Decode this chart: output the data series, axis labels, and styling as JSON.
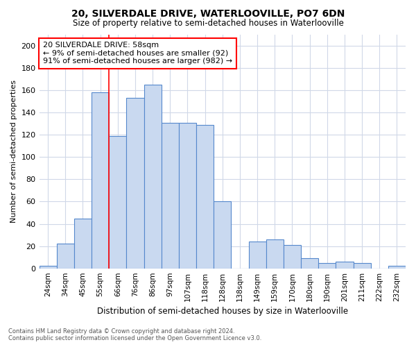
{
  "title1": "20, SILVERDALE DRIVE, WATERLOOVILLE, PO7 6DN",
  "title2": "Size of property relative to semi-detached houses in Waterlooville",
  "xlabel": "Distribution of semi-detached houses by size in Waterlooville",
  "ylabel": "Number of semi-detached properties",
  "categories": [
    "24sqm",
    "34sqm",
    "45sqm",
    "55sqm",
    "66sqm",
    "76sqm",
    "86sqm",
    "97sqm",
    "107sqm",
    "118sqm",
    "128sqm",
    "138sqm",
    "149sqm",
    "159sqm",
    "170sqm",
    "180sqm",
    "190sqm",
    "201sqm",
    "211sqm",
    "222sqm",
    "232sqm"
  ],
  "values": [
    2,
    22,
    45,
    158,
    119,
    153,
    165,
    131,
    131,
    129,
    60,
    0,
    24,
    26,
    21,
    9,
    5,
    6,
    5,
    0,
    2
  ],
  "bar_color": "#c9d9f0",
  "bar_edge_color": "#5588cc",
  "annotation_text": "20 SILVERDALE DRIVE: 58sqm\n← 9% of semi-detached houses are smaller (92)\n91% of semi-detached houses are larger (982) →",
  "annotation_box_color": "white",
  "annotation_box_edge_color": "red",
  "vline_color": "red",
  "vline_pos": 3.5,
  "ylim": [
    0,
    210
  ],
  "yticks": [
    0,
    20,
    40,
    60,
    80,
    100,
    120,
    140,
    160,
    180,
    200
  ],
  "footer1": "Contains HM Land Registry data © Crown copyright and database right 2024.",
  "footer2": "Contains public sector information licensed under the Open Government Licence v3.0.",
  "bg_color": "#ffffff",
  "grid_color": "#d0d8e8"
}
